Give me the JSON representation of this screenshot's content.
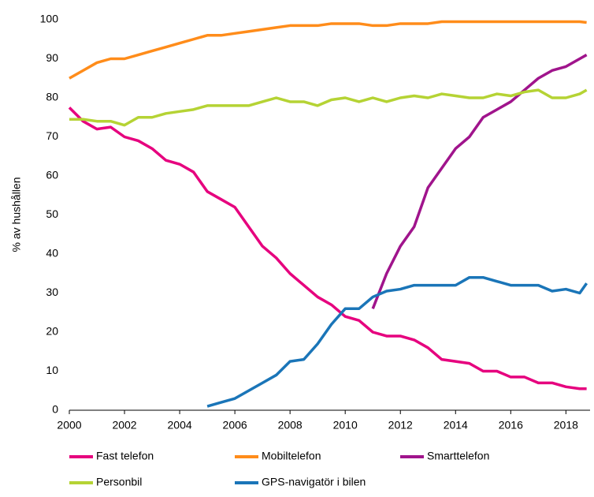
{
  "chart_data": {
    "type": "line",
    "ylabel": "% av hushållen",
    "x": [
      2000,
      2000.5,
      2001,
      2001.5,
      2002,
      2002.5,
      2003,
      2003.5,
      2004,
      2004.5,
      2005,
      2005.5,
      2006,
      2006.5,
      2007,
      2007.5,
      2008,
      2008.5,
      2009,
      2009.5,
      2010,
      2010.5,
      2011,
      2011.5,
      2012,
      2012.5,
      2013,
      2013.5,
      2014,
      2014.5,
      2015,
      2015.5,
      2016,
      2016.5,
      2017,
      2017.5,
      2018,
      2018.5,
      2018.75
    ],
    "series": [
      {
        "name": "Fast telefon",
        "color": "#e6007e",
        "values": [
          77.5,
          74,
          72,
          72.5,
          70,
          69,
          67,
          64,
          63,
          61,
          56,
          54,
          52,
          47,
          42,
          39,
          35,
          32,
          29,
          27,
          24,
          23,
          20,
          19,
          19,
          18,
          16,
          13,
          12.5,
          12,
          10,
          10,
          8.5,
          8.5,
          7,
          7,
          6,
          5.5,
          5.5
        ]
      },
      {
        "name": "Mobiltelefon",
        "color": "#ff8c1a",
        "values": [
          85,
          87,
          89,
          90,
          90,
          91,
          92,
          93,
          94,
          95,
          96,
          96,
          96.5,
          97,
          97.5,
          98,
          98.5,
          98.5,
          98.5,
          99,
          99,
          99,
          98.5,
          98.5,
          99,
          99,
          99,
          99.5,
          99.5,
          99.5,
          99.5,
          99.5,
          99.5,
          99.5,
          99.5,
          99.5,
          99.5,
          99.5,
          99.3
        ]
      },
      {
        "name": "Smarttelefon",
        "color": "#a0148c",
        "values": [
          null,
          null,
          null,
          null,
          null,
          null,
          null,
          null,
          null,
          null,
          null,
          null,
          null,
          null,
          null,
          null,
          null,
          null,
          null,
          null,
          null,
          null,
          26,
          35,
          42,
          47,
          57,
          62,
          67,
          70,
          75,
          77,
          79,
          82,
          85,
          87,
          88,
          90,
          91
        ]
      },
      {
        "name": "Personbil",
        "color": "#b5d334",
        "values": [
          74.5,
          74.5,
          74,
          74,
          73,
          75,
          75,
          76,
          76.5,
          77,
          78,
          78,
          78,
          78,
          79,
          80,
          79,
          79,
          78,
          79.5,
          80,
          79,
          80,
          79,
          80,
          80.5,
          80,
          81,
          80.5,
          80,
          80,
          81,
          80.5,
          81.5,
          82,
          80,
          80,
          81,
          82
        ]
      },
      {
        "name": "GPS-navigatör i bilen",
        "color": "#1a75b8",
        "values": [
          null,
          null,
          null,
          null,
          null,
          null,
          null,
          null,
          null,
          null,
          1,
          2,
          3,
          5,
          7,
          9,
          12.5,
          13,
          17,
          22,
          26,
          26,
          29,
          30.5,
          31,
          32,
          32,
          32,
          32,
          34,
          34,
          33,
          32,
          32,
          32,
          30.5,
          31,
          30,
          32.5
        ]
      }
    ],
    "xlim": [
      2000,
      2018.875
    ],
    "xticks": [
      2000,
      2002,
      2004,
      2006,
      2008,
      2010,
      2012,
      2014,
      2016,
      2018
    ],
    "ylim": [
      0,
      100
    ],
    "yticks": [
      0,
      10,
      20,
      30,
      40,
      50,
      60,
      70,
      80,
      90,
      100
    ],
    "grid": false,
    "legend": "bottom"
  }
}
